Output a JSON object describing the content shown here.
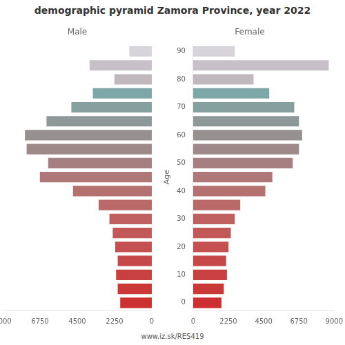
{
  "chart_data": {
    "type": "bar",
    "orientation": "horizontal",
    "title": "demographic pyramid Zamora Province, year 2022",
    "y_label": "Age",
    "annotations": [
      "www.iz.sk/RES419"
    ],
    "categories": [
      "0",
      null,
      "10",
      null,
      "20",
      null,
      "30",
      null,
      "40",
      null,
      "50",
      null,
      "60",
      null,
      "70",
      null,
      "80",
      null,
      "90"
    ],
    "series": [
      {
        "name": "Male",
        "values": [
          1950,
          2100,
          2200,
          2100,
          2250,
          2400,
          2600,
          3250,
          4800,
          6800,
          6300,
          7600,
          7700,
          6400,
          4900,
          3600,
          2300,
          3800,
          1400
        ],
        "colors": [
          "#cd3030",
          "#cb3838",
          "#c94040",
          "#c74848",
          "#c55050",
          "#c35858",
          "#bf6060",
          "#bb6868",
          "#b57070",
          "#ae7878",
          "#a68080",
          "#9e8888",
          "#969090",
          "#8e9898",
          "#86a0a0",
          "#7ea8a8",
          "#c0b8bc",
          "#c8c0c8",
          "#d8d4dc"
        ]
      },
      {
        "name": "Female",
        "values": [
          1850,
          2000,
          2200,
          2150,
          2300,
          2450,
          2700,
          3050,
          4650,
          5100,
          6400,
          6800,
          7000,
          6800,
          6500,
          4900,
          3900,
          8700,
          2700
        ],
        "colors": [
          "#cd3030",
          "#cb3838",
          "#c94040",
          "#c74848",
          "#c55050",
          "#c35858",
          "#bf6060",
          "#bb6868",
          "#b57070",
          "#ae7878",
          "#a68080",
          "#9e8888",
          "#969090",
          "#8e9898",
          "#86a0a0",
          "#7ea8a8",
          "#c0b8bc",
          "#c8c0c8",
          "#d8d4dc"
        ]
      }
    ],
    "xlim": [
      0,
      9000
    ],
    "xticks": [
      0,
      2250,
      4500,
      6750,
      9000
    ],
    "grid": false
  }
}
